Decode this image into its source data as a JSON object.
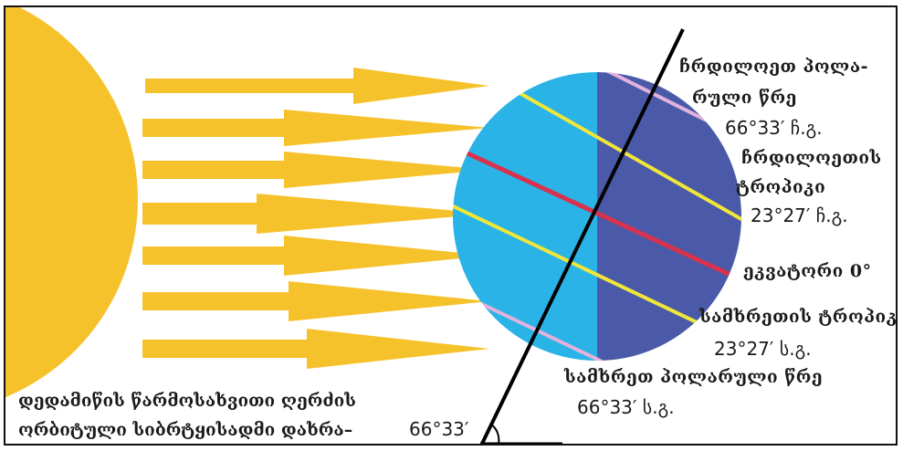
{
  "labels": {
    "north_polar_1": "ჩრდილოეთ პოლა-",
    "north_polar_2": "რული წრე",
    "north_polar_deg": "66°33′ ჩ.გ.",
    "north_tropic_1": "ჩრდილოეთის",
    "north_tropic_2": "ტროპიკი",
    "north_tropic_deg": "23°27′ ჩ.გ.",
    "equator": "ეკვატორი 0°",
    "south_tropic": "სამხრეთის ტროპიკი",
    "south_tropic_deg": "23°27′ ს.გ.",
    "south_polar": "სამხრეთ პოლარული წრე",
    "south_polar_deg": "66°33′ ს.გ.",
    "axis_line_1": "დედამიწის წარმოსახვითი ღერძის",
    "axis_line_2": "ორბიტული სიბრტყისადმი დახრა–",
    "axis_angle": "66°33′"
  },
  "colors": {
    "sun": "#f6c22c",
    "rays": "#f6c22c",
    "earth_day": "#2ab3e6",
    "earth_night": "#4a5aa8",
    "tropics": "#f1e63a",
    "equator": "#d8324d",
    "polar_circles": "#e2b2dc",
    "axis": "#000000"
  }
}
